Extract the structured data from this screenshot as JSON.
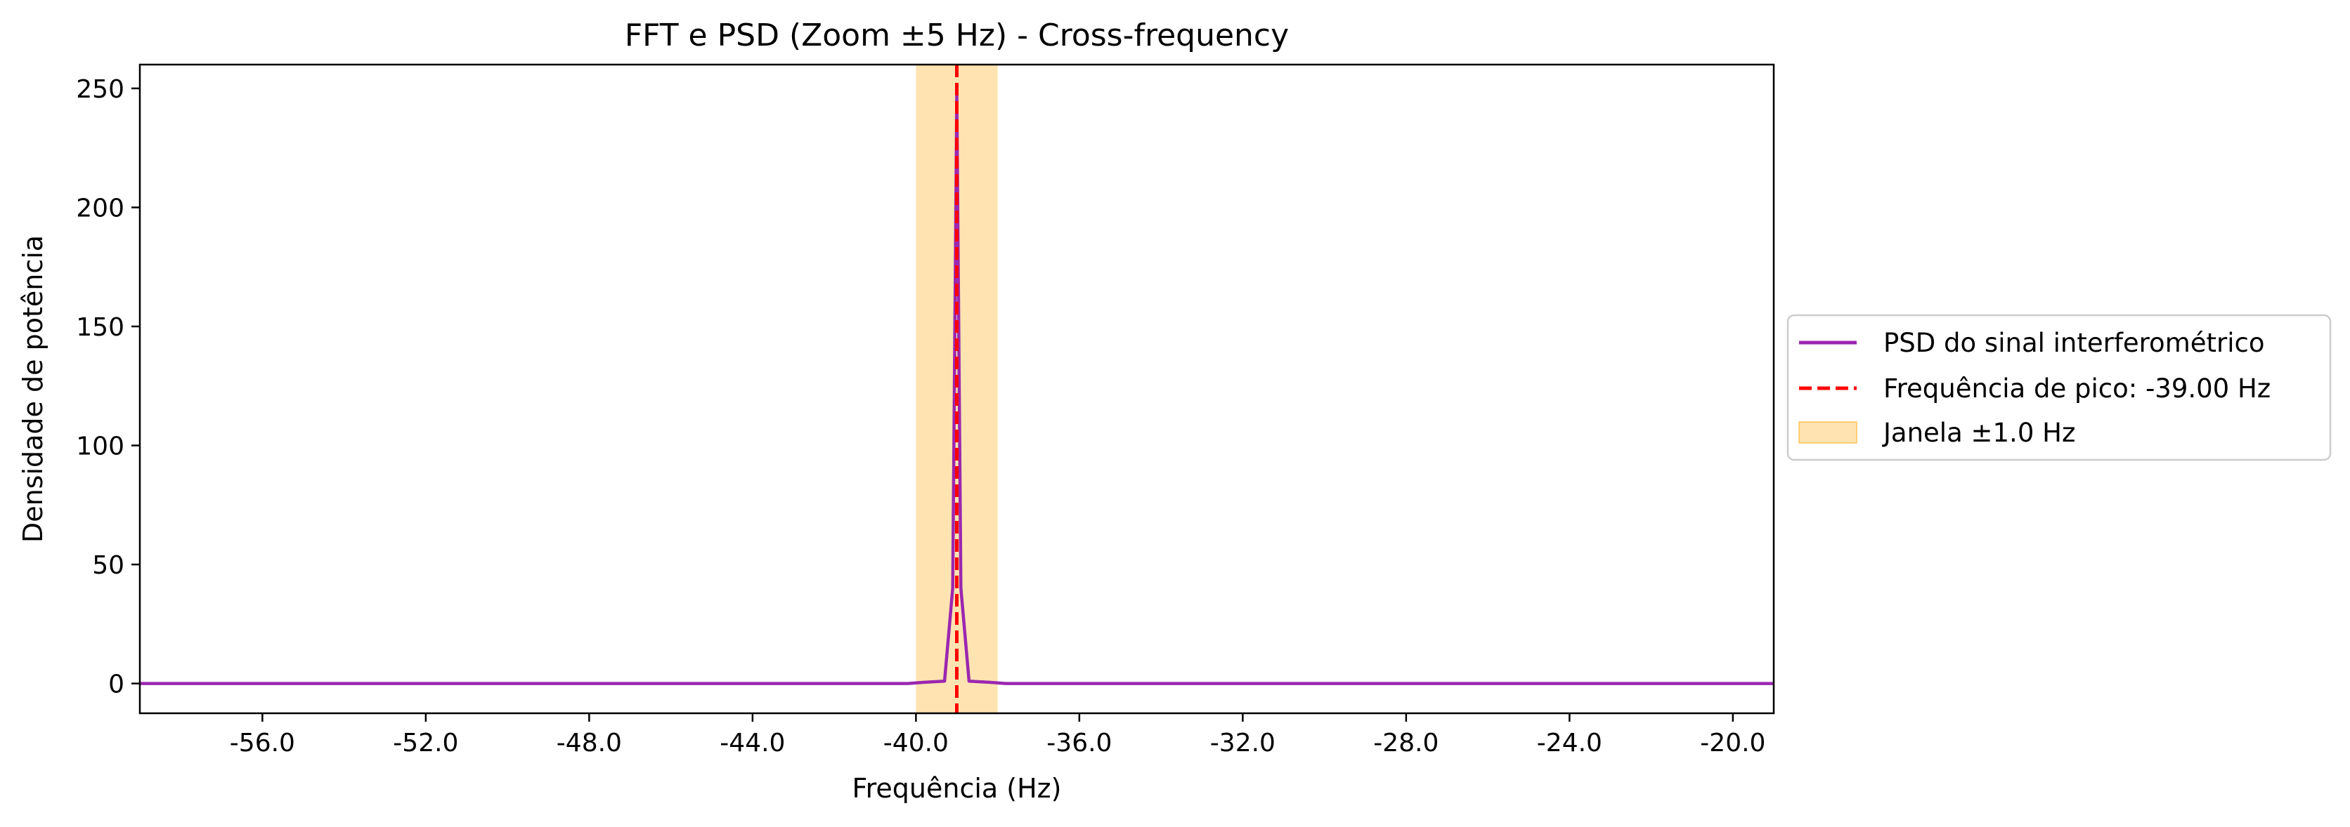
{
  "chart_data": {
    "type": "line",
    "title": "FFT e PSD (Zoom ±5 Hz) - Cross-frequency",
    "xlabel": "Frequência (Hz)",
    "ylabel": "Densidade de potência",
    "xlim": [
      -59.0,
      -19.0
    ],
    "ylim": [
      -12.5,
      260.0
    ],
    "x_ticks": [
      -56.0,
      -52.0,
      -48.0,
      -44.0,
      -40.0,
      -36.0,
      -32.0,
      -28.0,
      -24.0,
      -20.0
    ],
    "x_tick_labels": [
      "-56.0",
      "-52.0",
      "-48.0",
      "-44.0",
      "-40.0",
      "-36.0",
      "-32.0",
      "-28.0",
      "-24.0",
      "-20.0"
    ],
    "y_ticks": [
      0,
      50,
      100,
      150,
      200,
      250
    ],
    "y_tick_labels": [
      "0",
      "50",
      "100",
      "150",
      "200",
      "250"
    ],
    "grid": false,
    "legend_position": "outside-right",
    "series": [
      {
        "name": "PSD do sinal interferométrico",
        "color": "#9b27b0",
        "style": "solid",
        "x": [
          -59.0,
          -40.2,
          -39.8,
          -39.3,
          -39.1,
          -39.0,
          -38.9,
          -38.7,
          -38.2,
          -37.8,
          -19.0
        ],
        "y": [
          0,
          0,
          0.5,
          1,
          40,
          248,
          40,
          1,
          0.5,
          0,
          0
        ]
      },
      {
        "name": "Frequência de pico: -39.00 Hz",
        "color": "#ff0000",
        "style": "dashed",
        "type": "vline",
        "x": -39.0
      },
      {
        "name": "Janela ±1.0 Hz",
        "color": "#ffa500",
        "style": "filled",
        "type": "span",
        "x_range": [
          -40.0,
          -38.0
        ]
      }
    ]
  }
}
